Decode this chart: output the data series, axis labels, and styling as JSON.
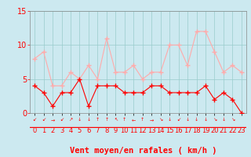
{
  "hours": [
    0,
    1,
    2,
    3,
    4,
    5,
    6,
    7,
    8,
    9,
    10,
    11,
    12,
    13,
    14,
    15,
    16,
    17,
    18,
    19,
    20,
    21,
    22,
    23
  ],
  "wind_avg": [
    4,
    3,
    1,
    3,
    3,
    5,
    1,
    4,
    4,
    4,
    3,
    3,
    3,
    4,
    4,
    3,
    3,
    3,
    3,
    4,
    2,
    3,
    2,
    0
  ],
  "wind_gust": [
    8,
    9,
    4,
    4,
    6,
    5,
    7,
    5,
    11,
    6,
    6,
    7,
    5,
    6,
    6,
    10,
    10,
    7,
    12,
    12,
    9,
    6,
    7,
    6
  ],
  "avg_color": "#ff0000",
  "gust_color": "#ffaaaa",
  "background_color": "#cce9f0",
  "grid_color": "#99cccc",
  "xlabel": "Vent moyen/en rafales ( km/h )",
  "ylim": [
    0,
    15
  ],
  "yticks": [
    0,
    5,
    10,
    15
  ],
  "xlabel_color": "#ff0000",
  "xlabel_fontsize": 7.5,
  "tick_fontsize": 6,
  "ytick_fontsize": 7
}
